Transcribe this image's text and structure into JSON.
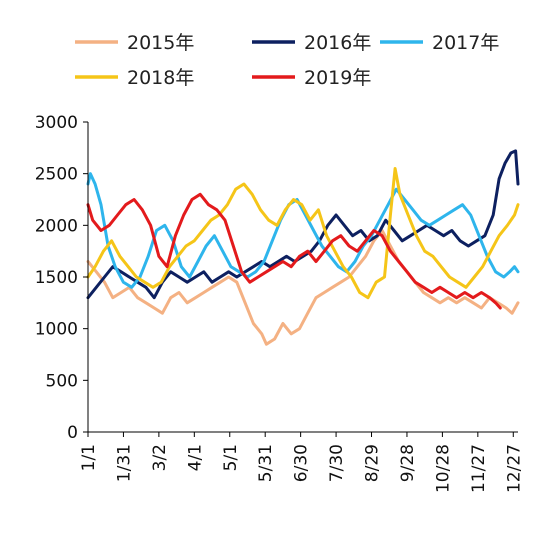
{
  "chart_data": {
    "type": "line",
    "title": "",
    "xlabel": "",
    "ylabel": "",
    "ylim": [
      0,
      3000
    ],
    "yticks": [
      0,
      500,
      1000,
      1500,
      2000,
      2500,
      3000
    ],
    "x_domain": [
      "1/1",
      "12/31"
    ],
    "xticks": [
      "1/1",
      "1/31",
      "3/2",
      "4/1",
      "5/1",
      "5/31",
      "6/30",
      "7/30",
      "8/29",
      "9/28",
      "10/28",
      "11/27",
      "12/27"
    ],
    "grid": false,
    "legend": "top",
    "series": [
      {
        "name": "2015年",
        "color": "#F4B183",
        "points": [
          [
            "1/1",
            1650
          ],
          [
            "1/8",
            1550
          ],
          [
            "1/15",
            1450
          ],
          [
            "1/22",
            1300
          ],
          [
            "1/29",
            1350
          ],
          [
            "2/5",
            1400
          ],
          [
            "2/12",
            1300
          ],
          [
            "2/19",
            1250
          ],
          [
            "2/26",
            1200
          ],
          [
            "3/5",
            1150
          ],
          [
            "3/12",
            1300
          ],
          [
            "3/19",
            1350
          ],
          [
            "3/26",
            1250
          ],
          [
            "4/2",
            1300
          ],
          [
            "4/9",
            1350
          ],
          [
            "4/16",
            1400
          ],
          [
            "4/23",
            1450
          ],
          [
            "4/30",
            1500
          ],
          [
            "5/7",
            1450
          ],
          [
            "5/14",
            1250
          ],
          [
            "5/21",
            1050
          ],
          [
            "5/28",
            950
          ],
          [
            "6/1",
            850
          ],
          [
            "6/8",
            900
          ],
          [
            "6/15",
            1050
          ],
          [
            "6/22",
            950
          ],
          [
            "6/29",
            1000
          ],
          [
            "7/6",
            1150
          ],
          [
            "7/13",
            1300
          ],
          [
            "7/20",
            1350
          ],
          [
            "7/27",
            1400
          ],
          [
            "8/3",
            1450
          ],
          [
            "8/10",
            1500
          ],
          [
            "8/17",
            1600
          ],
          [
            "8/24",
            1700
          ],
          [
            "8/31",
            1850
          ],
          [
            "9/7",
            1950
          ],
          [
            "9/14",
            1800
          ],
          [
            "9/21",
            1650
          ],
          [
            "9/28",
            1550
          ],
          [
            "10/5",
            1450
          ],
          [
            "10/12",
            1350
          ],
          [
            "10/19",
            1300
          ],
          [
            "10/26",
            1250
          ],
          [
            "11/2",
            1300
          ],
          [
            "11/9",
            1250
          ],
          [
            "11/16",
            1300
          ],
          [
            "11/23",
            1250
          ],
          [
            "11/30",
            1200
          ],
          [
            "12/7",
            1300
          ],
          [
            "12/14",
            1250
          ],
          [
            "12/21",
            1200
          ],
          [
            "12/26",
            1150
          ],
          [
            "12/31",
            1250
          ]
        ]
      },
      {
        "name": "2016年",
        "color": "#0D2060",
        "points": [
          [
            "1/1",
            1300
          ],
          [
            "1/8",
            1400
          ],
          [
            "1/15",
            1500
          ],
          [
            "1/22",
            1600
          ],
          [
            "1/29",
            1550
          ],
          [
            "2/5",
            1500
          ],
          [
            "2/12",
            1450
          ],
          [
            "2/19",
            1400
          ],
          [
            "2/26",
            1300
          ],
          [
            "3/5",
            1450
          ],
          [
            "3/12",
            1550
          ],
          [
            "3/19",
            1500
          ],
          [
            "3/26",
            1450
          ],
          [
            "4/2",
            1500
          ],
          [
            "4/9",
            1550
          ],
          [
            "4/16",
            1450
          ],
          [
            "4/23",
            1500
          ],
          [
            "4/30",
            1550
          ],
          [
            "5/7",
            1500
          ],
          [
            "5/14",
            1550
          ],
          [
            "5/21",
            1600
          ],
          [
            "5/28",
            1650
          ],
          [
            "6/4",
            1600
          ],
          [
            "6/11",
            1650
          ],
          [
            "6/18",
            1700
          ],
          [
            "6/25",
            1650
          ],
          [
            "7/2",
            1700
          ],
          [
            "7/9",
            1750
          ],
          [
            "7/16",
            1850
          ],
          [
            "7/23",
            2000
          ],
          [
            "7/30",
            2100
          ],
          [
            "8/6",
            2000
          ],
          [
            "8/13",
            1900
          ],
          [
            "8/20",
            1950
          ],
          [
            "8/27",
            1850
          ],
          [
            "9/3",
            1900
          ],
          [
            "9/10",
            2050
          ],
          [
            "9/17",
            1950
          ],
          [
            "9/24",
            1850
          ],
          [
            "10/1",
            1900
          ],
          [
            "10/8",
            1950
          ],
          [
            "10/15",
            2000
          ],
          [
            "10/22",
            1950
          ],
          [
            "10/29",
            1900
          ],
          [
            "11/5",
            1950
          ],
          [
            "11/12",
            1850
          ],
          [
            "11/19",
            1800
          ],
          [
            "11/26",
            1850
          ],
          [
            "12/3",
            1900
          ],
          [
            "12/10",
            2100
          ],
          [
            "12/15",
            2450
          ],
          [
            "12/20",
            2600
          ],
          [
            "12/25",
            2700
          ],
          [
            "12/29",
            2720
          ],
          [
            "12/31",
            2400
          ]
        ]
      },
      {
        "name": "2017年",
        "color": "#2EB5EC",
        "points": [
          [
            "1/1",
            2400
          ],
          [
            "1/3",
            2500
          ],
          [
            "1/7",
            2400
          ],
          [
            "1/12",
            2200
          ],
          [
            "1/18",
            1800
          ],
          [
            "1/24",
            1600
          ],
          [
            "1/31",
            1450
          ],
          [
            "2/7",
            1400
          ],
          [
            "2/14",
            1500
          ],
          [
            "2/21",
            1700
          ],
          [
            "2/28",
            1950
          ],
          [
            "3/7",
            2000
          ],
          [
            "3/14",
            1850
          ],
          [
            "3/21",
            1600
          ],
          [
            "3/28",
            1500
          ],
          [
            "4/4",
            1650
          ],
          [
            "4/11",
            1800
          ],
          [
            "4/18",
            1900
          ],
          [
            "4/25",
            1750
          ],
          [
            "5/2",
            1600
          ],
          [
            "5/9",
            1550
          ],
          [
            "5/16",
            1500
          ],
          [
            "5/23",
            1550
          ],
          [
            "5/30",
            1650
          ],
          [
            "6/6",
            1850
          ],
          [
            "6/13",
            2050
          ],
          [
            "6/20",
            2200
          ],
          [
            "6/27",
            2250
          ],
          [
            "7/4",
            2100
          ],
          [
            "7/11",
            1950
          ],
          [
            "7/18",
            1800
          ],
          [
            "7/25",
            1700
          ],
          [
            "8/1",
            1600
          ],
          [
            "8/8",
            1550
          ],
          [
            "8/15",
            1650
          ],
          [
            "8/22",
            1800
          ],
          [
            "8/29",
            1900
          ],
          [
            "9/5",
            2050
          ],
          [
            "9/12",
            2200
          ],
          [
            "9/19",
            2350
          ],
          [
            "9/26",
            2250
          ],
          [
            "10/3",
            2150
          ],
          [
            "10/10",
            2050
          ],
          [
            "10/17",
            2000
          ],
          [
            "10/24",
            2050
          ],
          [
            "10/31",
            2100
          ],
          [
            "11/7",
            2150
          ],
          [
            "11/14",
            2200
          ],
          [
            "11/21",
            2100
          ],
          [
            "11/28",
            1900
          ],
          [
            "12/5",
            1700
          ],
          [
            "12/12",
            1550
          ],
          [
            "12/19",
            1500
          ],
          [
            "12/24",
            1550
          ],
          [
            "12/28",
            1600
          ],
          [
            "12/31",
            1550
          ]
        ]
      },
      {
        "name": "2018年",
        "color": "#F5C518",
        "points": [
          [
            "1/1",
            1500
          ],
          [
            "1/7",
            1600
          ],
          [
            "1/14",
            1750
          ],
          [
            "1/21",
            1850
          ],
          [
            "1/28",
            1700
          ],
          [
            "2/4",
            1600
          ],
          [
            "2/11",
            1500
          ],
          [
            "2/18",
            1450
          ],
          [
            "2/25",
            1400
          ],
          [
            "3/4",
            1450
          ],
          [
            "3/11",
            1600
          ],
          [
            "3/18",
            1700
          ],
          [
            "3/25",
            1800
          ],
          [
            "4/1",
            1850
          ],
          [
            "4/8",
            1950
          ],
          [
            "4/15",
            2050
          ],
          [
            "4/22",
            2100
          ],
          [
            "4/29",
            2200
          ],
          [
            "5/6",
            2350
          ],
          [
            "5/13",
            2400
          ],
          [
            "5/20",
            2300
          ],
          [
            "5/27",
            2150
          ],
          [
            "6/3",
            2050
          ],
          [
            "6/10",
            2000
          ],
          [
            "6/17",
            2150
          ],
          [
            "6/24",
            2250
          ],
          [
            "7/1",
            2200
          ],
          [
            "7/8",
            2050
          ],
          [
            "7/15",
            2150
          ],
          [
            "7/22",
            1900
          ],
          [
            "7/29",
            1750
          ],
          [
            "8/5",
            1600
          ],
          [
            "8/12",
            1500
          ],
          [
            "8/19",
            1350
          ],
          [
            "8/26",
            1300
          ],
          [
            "9/2",
            1450
          ],
          [
            "9/9",
            1500
          ],
          [
            "9/14",
            2100
          ],
          [
            "9/18",
            2550
          ],
          [
            "9/22",
            2300
          ],
          [
            "9/29",
            2100
          ],
          [
            "10/6",
            1900
          ],
          [
            "10/13",
            1750
          ],
          [
            "10/20",
            1700
          ],
          [
            "10/27",
            1600
          ],
          [
            "11/3",
            1500
          ],
          [
            "11/10",
            1450
          ],
          [
            "11/17",
            1400
          ],
          [
            "11/24",
            1500
          ],
          [
            "12/1",
            1600
          ],
          [
            "12/8",
            1750
          ],
          [
            "12/15",
            1900
          ],
          [
            "12/22",
            2000
          ],
          [
            "12/28",
            2100
          ],
          [
            "12/31",
            2200
          ]
        ]
      },
      {
        "name": "2019年",
        "color": "#E31A1C",
        "points": [
          [
            "1/1",
            2200
          ],
          [
            "1/5",
            2050
          ],
          [
            "1/12",
            1950
          ],
          [
            "1/19",
            2000
          ],
          [
            "1/26",
            2100
          ],
          [
            "2/2",
            2200
          ],
          [
            "2/9",
            2250
          ],
          [
            "2/16",
            2150
          ],
          [
            "2/23",
            2000
          ],
          [
            "3/2",
            1700
          ],
          [
            "3/9",
            1600
          ],
          [
            "3/16",
            1900
          ],
          [
            "3/23",
            2100
          ],
          [
            "3/30",
            2250
          ],
          [
            "4/6",
            2300
          ],
          [
            "4/13",
            2200
          ],
          [
            "4/20",
            2150
          ],
          [
            "4/27",
            2050
          ],
          [
            "5/4",
            1800
          ],
          [
            "5/11",
            1550
          ],
          [
            "5/18",
            1450
          ],
          [
            "5/25",
            1500
          ],
          [
            "6/1",
            1550
          ],
          [
            "6/8",
            1600
          ],
          [
            "6/15",
            1650
          ],
          [
            "6/22",
            1600
          ],
          [
            "6/29",
            1700
          ],
          [
            "7/6",
            1750
          ],
          [
            "7/13",
            1650
          ],
          [
            "7/20",
            1750
          ],
          [
            "7/27",
            1850
          ],
          [
            "8/3",
            1900
          ],
          [
            "8/10",
            1800
          ],
          [
            "8/17",
            1750
          ],
          [
            "8/24",
            1850
          ],
          [
            "8/31",
            1950
          ],
          [
            "9/7",
            1900
          ],
          [
            "9/14",
            1750
          ],
          [
            "9/21",
            1650
          ],
          [
            "9/28",
            1550
          ],
          [
            "10/5",
            1450
          ],
          [
            "10/12",
            1400
          ],
          [
            "10/19",
            1350
          ],
          [
            "10/26",
            1400
          ],
          [
            "11/2",
            1350
          ],
          [
            "11/9",
            1300
          ],
          [
            "11/16",
            1350
          ],
          [
            "11/23",
            1300
          ],
          [
            "11/30",
            1350
          ],
          [
            "12/7",
            1300
          ],
          [
            "12/12",
            1250
          ],
          [
            "12/16",
            1200
          ]
        ]
      }
    ]
  }
}
